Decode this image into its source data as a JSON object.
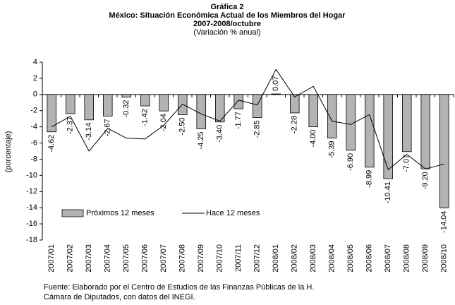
{
  "chart_data": {
    "type": "bar",
    "title": "Gráfica 2",
    "subtitle_lines": [
      "México: Situación Económica Actual de los Miembros del Hogar",
      "2007-2008/octubre"
    ],
    "subtitle": "(Variación % anual)",
    "y_label": "(porcentaje)",
    "source_lines": [
      "Fuente: Elaborado por el Centro de Estudios de las Finanzas Públicas de la H.",
      "Cámara de Diputados, con datos del INEGI."
    ],
    "categories": [
      "2007/01",
      "2007/02",
      "2007/03",
      "2007/04",
      "2007/05",
      "2007/06",
      "2007/07",
      "2007/08",
      "2007/09",
      "2007/10",
      "2007/11",
      "2007/12",
      "2008/01",
      "2008/02",
      "2008/03",
      "2008/04",
      "2008/05",
      "2008/06",
      "2008/07",
      "2008/08",
      "2008/09",
      "2008/10"
    ],
    "series": [
      {
        "name": "Próximos 12 meses",
        "type": "bar",
        "color": "#b3b3b3",
        "values": [
          -4.62,
          -2.37,
          -3.14,
          -2.67,
          -0.32,
          -1.42,
          -2.04,
          -2.5,
          -4.25,
          -3.4,
          -1.77,
          -2.85,
          0.07,
          -2.28,
          -4.0,
          -5.39,
          -6.9,
          -8.99,
          -10.41,
          -7.07,
          -9.2,
          -14.04
        ],
        "value_labels": [
          "-4.62",
          "-2.37",
          "-3.14",
          "-2.67",
          "-0.32",
          "-1.42",
          "-2.04",
          "-2.50",
          "-4.25",
          "-3.40",
          "-1.77",
          "-2.85",
          "0.07",
          "-2.28",
          "-4.00",
          "-5.39",
          "-6.90",
          "-8.99",
          "-10.41",
          "-7.07",
          "-9.20",
          "-14.04"
        ]
      },
      {
        "name": "Hace 12 meses",
        "type": "line",
        "color": "#000000",
        "values": [
          -4.0,
          -2.7,
          -7.0,
          -4.2,
          -5.4,
          -5.5,
          -3.8,
          -1.2,
          -2.4,
          -3.3,
          -0.7,
          -1.3,
          3.1,
          -0.3,
          1.0,
          -3.3,
          -3.7,
          -2.5,
          -9.3,
          -7.4,
          -9.2,
          -8.6
        ]
      }
    ],
    "ylim": [
      -18,
      4
    ],
    "yticks": [
      4,
      2,
      0,
      -2,
      -4,
      -6,
      -8,
      -10,
      -12,
      -14,
      -16,
      -18
    ],
    "grid": false,
    "legend": "bottom-left"
  }
}
